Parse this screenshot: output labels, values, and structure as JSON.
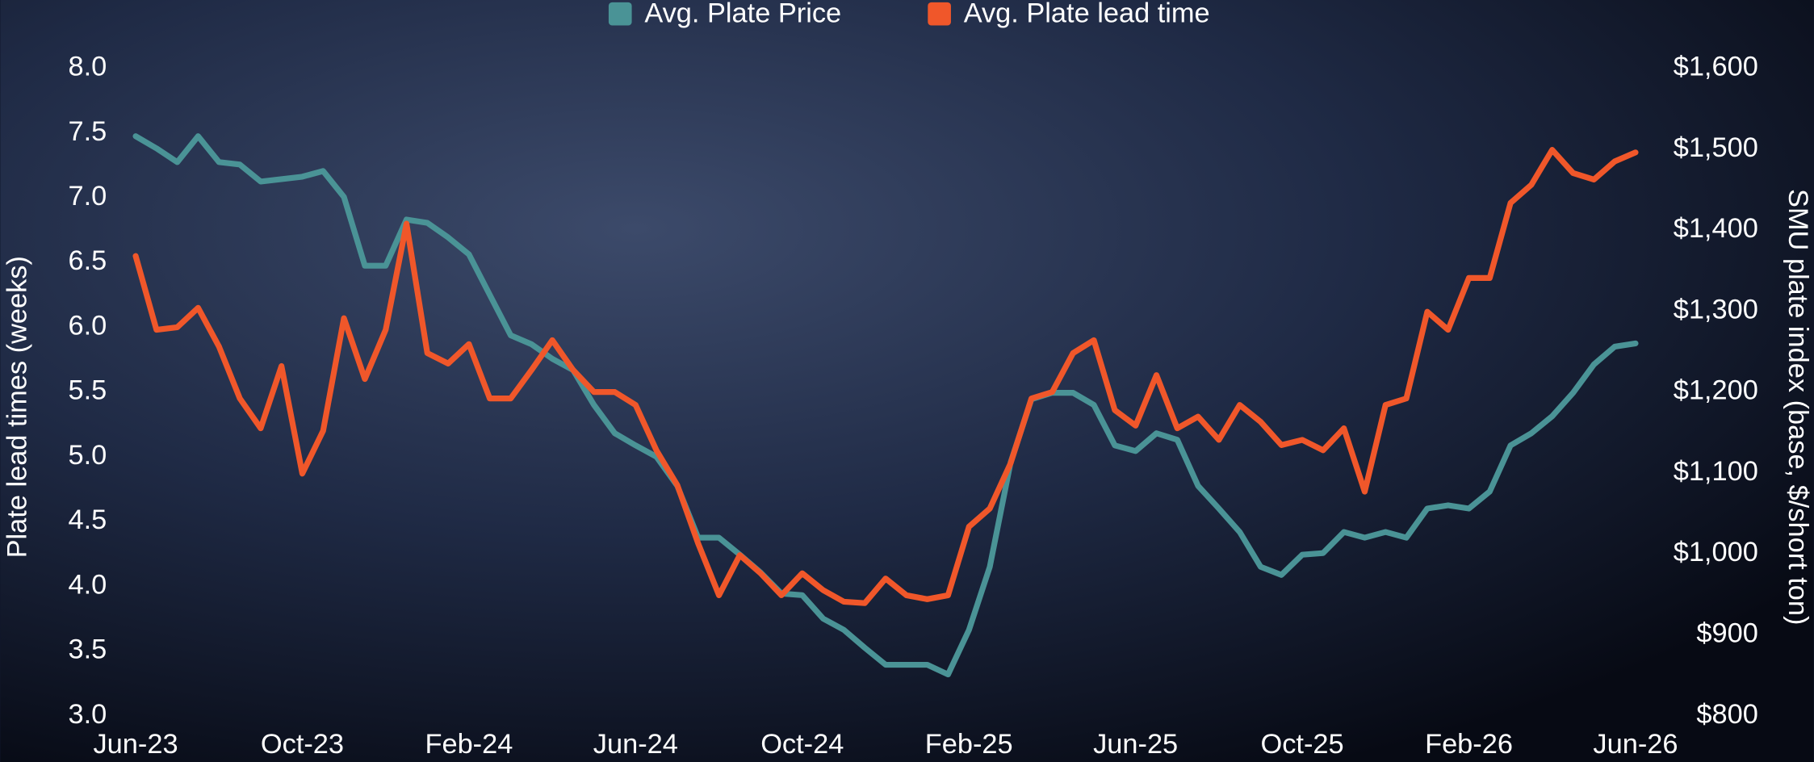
{
  "chart_data": {
    "type": "line",
    "y_label": "Plate lead times (weeks)",
    "y2_label": "SMU plate index (base, $/short ton)",
    "categories": [
      "Jun-23",
      null,
      null,
      null,
      null,
      null,
      null,
      null,
      "Oct-23",
      null,
      null,
      null,
      null,
      null,
      null,
      null,
      "Feb-24",
      null,
      null,
      null,
      null,
      null,
      null,
      null,
      "Jun-24",
      null,
      null,
      null,
      null,
      null,
      null,
      null,
      "Oct-24",
      null,
      null,
      null,
      null,
      null,
      null,
      null,
      "Feb-25",
      null,
      null,
      null,
      null,
      null,
      null,
      null,
      "Jun-25",
      null,
      null,
      null,
      null,
      null,
      null,
      null,
      "Oct-25",
      null,
      null,
      null,
      null,
      null,
      null,
      null,
      "Feb-26",
      null,
      null,
      null,
      null,
      null,
      null,
      null,
      "Jun-26"
    ],
    "series": [
      {
        "name": "Avg. Plate Price",
        "color": "#4a9396",
        "axis": "y2",
        "values": [
          1516,
          1501,
          1484,
          1516,
          1484,
          1481,
          1460,
          1463,
          1466,
          1473,
          1441,
          1356,
          1356,
          1413,
          1409,
          1391,
          1370,
          1320,
          1270,
          1259,
          1241,
          1227,
          1184,
          1149,
          1134,
          1120,
          1084,
          1020,
          1020,
          999,
          977,
          951,
          949,
          920,
          906,
          884,
          863,
          863,
          863,
          851,
          906,
          984,
          1113,
          1191,
          1199,
          1199,
          1184,
          1134,
          1127,
          1149,
          1141,
          1084,
          1056,
          1027,
          984,
          974,
          999,
          1001,
          1027,
          1020,
          1027,
          1020,
          1056,
          1060,
          1056,
          1077,
          1134,
          1149,
          1170,
          1199,
          1234,
          1256,
          1260
        ]
      },
      {
        "name": "Avg. Plate lead time",
        "color": "#f0572a",
        "values": [
          6.55,
          5.98,
          6.0,
          6.15,
          5.85,
          5.45,
          5.22,
          5.7,
          4.87,
          5.2,
          6.07,
          5.6,
          5.98,
          6.8,
          5.8,
          5.72,
          5.87,
          5.45,
          5.45,
          5.67,
          5.9,
          5.67,
          5.5,
          5.5,
          5.4,
          5.05,
          4.78,
          4.33,
          3.93,
          4.24,
          4.1,
          3.93,
          4.1,
          3.97,
          3.88,
          3.87,
          4.06,
          3.93,
          3.9,
          3.93,
          4.46,
          4.6,
          4.95,
          5.45,
          5.5,
          5.8,
          5.9,
          5.36,
          5.24,
          5.63,
          5.22,
          5.31,
          5.13,
          5.4,
          5.27,
          5.09,
          5.13,
          5.05,
          5.22,
          4.73,
          5.4,
          5.45,
          6.12,
          5.98,
          6.38,
          6.38,
          6.96,
          7.1,
          7.37,
          7.19,
          7.14,
          7.28,
          7.35
        ]
      }
    ],
    "ylim": [
      3,
      8
    ],
    "yticks": [
      {
        "value": 3,
        "label": "3.0"
      },
      {
        "value": 3.5,
        "label": "3.5"
      },
      {
        "value": 4,
        "label": "4.0"
      },
      {
        "value": 4.5,
        "label": "4.5"
      },
      {
        "value": 5,
        "label": "5.0"
      },
      {
        "value": 5.5,
        "label": "5.5"
      },
      {
        "value": 6,
        "label": "6.0"
      },
      {
        "value": 6.5,
        "label": "6.5"
      },
      {
        "value": 7,
        "label": "7.0"
      },
      {
        "value": 7.5,
        "label": "7.5"
      },
      {
        "value": 8,
        "label": "8.0"
      }
    ],
    "y2lim": [
      800,
      1600
    ],
    "y2ticks": [
      {
        "value": 800,
        "label": "$800"
      },
      {
        "value": 900,
        "label": "$900"
      },
      {
        "value": 1000,
        "label": "$1,000"
      },
      {
        "value": 1100,
        "label": "$1,100"
      },
      {
        "value": 1200,
        "label": "$1,200"
      },
      {
        "value": 1300,
        "label": "$1,300"
      },
      {
        "value": 1400,
        "label": "$1,400"
      },
      {
        "value": 1500,
        "label": "$1,500"
      },
      {
        "value": 1600,
        "label": "$1,600"
      }
    ],
    "legend": "top",
    "grid": false
  }
}
